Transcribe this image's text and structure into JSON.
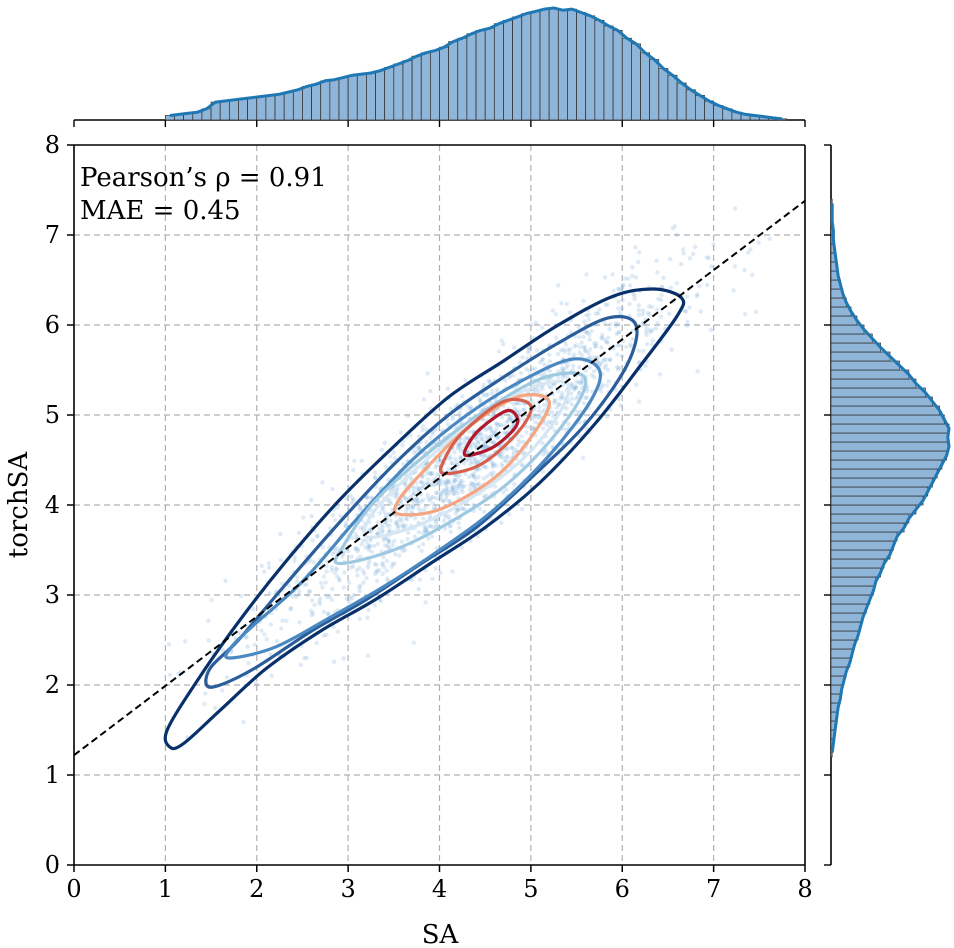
{
  "chart_data": {
    "type": "scatter",
    "xlabel": "SA",
    "ylabel": "torchSA",
    "xlim": [
      0,
      8
    ],
    "ylim": [
      0,
      8
    ],
    "x_ticks": [
      0,
      1,
      2,
      3,
      4,
      5,
      6,
      7,
      8
    ],
    "y_ticks": [
      0,
      1,
      2,
      3,
      4,
      5,
      6,
      7,
      8
    ],
    "grid": true,
    "annotations": [
      "Pearson’s ρ = 0.91",
      "MAE = 0.45"
    ],
    "fit_line": {
      "style": "dashed",
      "color": "#000000",
      "x": [
        0,
        8
      ],
      "y": [
        1.22,
        7.38
      ]
    },
    "scatter_color": "#6aa6d6",
    "scatter_summary": {
      "mean": [
        4.35,
        4.55
      ],
      "sd": [
        1.1,
        0.95
      ],
      "correlation": 0.91,
      "approx_points": 1800
    },
    "kde_contours": [
      {
        "level": 1,
        "color": "#08306b",
        "points": [
          [
            1.05,
            1.31
          ],
          [
            1.2,
            1.35
          ],
          [
            1.6,
            1.72
          ],
          [
            2.1,
            2.18
          ],
          [
            2.7,
            2.6
          ],
          [
            3.3,
            2.95
          ],
          [
            3.9,
            3.35
          ],
          [
            4.5,
            3.75
          ],
          [
            5.1,
            4.25
          ],
          [
            5.7,
            4.9
          ],
          [
            6.2,
            5.55
          ],
          [
            6.6,
            6.1
          ],
          [
            6.65,
            6.3
          ],
          [
            6.35,
            6.4
          ],
          [
            5.9,
            6.32
          ],
          [
            5.3,
            6.0
          ],
          [
            4.7,
            5.6
          ],
          [
            4.1,
            5.2
          ],
          [
            3.5,
            4.65
          ],
          [
            2.9,
            4.05
          ],
          [
            2.3,
            3.35
          ],
          [
            1.8,
            2.7
          ],
          [
            1.35,
            2.05
          ],
          [
            1.02,
            1.5
          ]
        ]
      },
      {
        "level": 2,
        "color": "#2a5d9a",
        "points": [
          [
            1.45,
            2.0
          ],
          [
            1.6,
            2.0
          ],
          [
            2.0,
            2.2
          ],
          [
            2.6,
            2.6
          ],
          [
            3.2,
            2.95
          ],
          [
            3.8,
            3.35
          ],
          [
            4.4,
            3.75
          ],
          [
            5.0,
            4.3
          ],
          [
            5.6,
            4.9
          ],
          [
            6.05,
            5.55
          ],
          [
            6.15,
            6.0
          ],
          [
            5.85,
            6.08
          ],
          [
            5.3,
            5.8
          ],
          [
            4.7,
            5.42
          ],
          [
            4.1,
            5.0
          ],
          [
            3.5,
            4.45
          ],
          [
            2.9,
            3.8
          ],
          [
            2.3,
            3.1
          ],
          [
            1.8,
            2.5
          ],
          [
            1.5,
            2.2
          ]
        ]
      },
      {
        "level": 3,
        "color": "#4a88c2",
        "points": [
          [
            1.7,
            2.3
          ],
          [
            2.2,
            2.42
          ],
          [
            2.8,
            2.75
          ],
          [
            3.4,
            3.1
          ],
          [
            4.0,
            3.5
          ],
          [
            4.6,
            3.95
          ],
          [
            5.2,
            4.55
          ],
          [
            5.65,
            5.15
          ],
          [
            5.75,
            5.5
          ],
          [
            5.45,
            5.62
          ],
          [
            4.9,
            5.38
          ],
          [
            4.3,
            5.0
          ],
          [
            3.7,
            4.5
          ],
          [
            3.1,
            3.85
          ],
          [
            2.5,
            3.15
          ],
          [
            1.95,
            2.65
          ],
          [
            1.72,
            2.42
          ]
        ]
      },
      {
        "level": 4,
        "color": "#9ecae1",
        "points": [
          [
            2.9,
            3.35
          ],
          [
            3.5,
            3.5
          ],
          [
            4.1,
            3.8
          ],
          [
            4.7,
            4.2
          ],
          [
            5.2,
            4.7
          ],
          [
            5.55,
            5.2
          ],
          [
            5.55,
            5.45
          ],
          [
            5.1,
            5.4
          ],
          [
            4.5,
            5.05
          ],
          [
            3.9,
            4.6
          ],
          [
            3.3,
            4.05
          ],
          [
            2.95,
            3.55
          ]
        ]
      },
      {
        "level": 5,
        "color": "#d6e6f2",
        "points": [
          [
            3.2,
            3.65
          ],
          [
            3.7,
            3.75
          ],
          [
            4.3,
            4.05
          ],
          [
            4.9,
            4.5
          ],
          [
            5.3,
            5.0
          ],
          [
            5.4,
            5.35
          ],
          [
            5.0,
            5.3
          ],
          [
            4.4,
            4.95
          ],
          [
            3.8,
            4.45
          ],
          [
            3.3,
            3.95
          ]
        ]
      },
      {
        "level": 6,
        "color": "#f4a582",
        "points": [
          [
            3.55,
            3.9
          ],
          [
            4.0,
            3.95
          ],
          [
            4.6,
            4.3
          ],
          [
            5.0,
            4.75
          ],
          [
            5.2,
            5.15
          ],
          [
            4.85,
            5.2
          ],
          [
            4.3,
            4.85
          ],
          [
            3.8,
            4.35
          ],
          [
            3.55,
            4.05
          ]
        ]
      },
      {
        "level": 7,
        "color": "#d6604d",
        "points": [
          [
            4.05,
            4.35
          ],
          [
            4.45,
            4.45
          ],
          [
            4.85,
            4.8
          ],
          [
            5.0,
            5.1
          ],
          [
            4.7,
            5.15
          ],
          [
            4.25,
            4.8
          ],
          [
            4.05,
            4.5
          ]
        ]
      },
      {
        "level": 8,
        "color": "#b2182b",
        "points": [
          [
            4.3,
            4.55
          ],
          [
            4.6,
            4.65
          ],
          [
            4.85,
            4.9
          ],
          [
            4.75,
            5.05
          ],
          [
            4.45,
            4.85
          ],
          [
            4.3,
            4.65
          ]
        ]
      }
    ],
    "marginal_x": {
      "orientation": "top",
      "bin_width": 0.1,
      "bin_start": 1.0,
      "bins": 68,
      "relative_heights": [
        0.04,
        0.05,
        0.06,
        0.07,
        0.1,
        0.16,
        0.17,
        0.18,
        0.19,
        0.2,
        0.21,
        0.22,
        0.23,
        0.25,
        0.27,
        0.3,
        0.32,
        0.35,
        0.36,
        0.38,
        0.4,
        0.41,
        0.42,
        0.44,
        0.47,
        0.5,
        0.53,
        0.57,
        0.6,
        0.62,
        0.65,
        0.7,
        0.73,
        0.77,
        0.8,
        0.82,
        0.86,
        0.89,
        0.92,
        0.95,
        0.97,
        0.99,
        1.0,
        0.98,
        0.99,
        0.96,
        0.93,
        0.89,
        0.84,
        0.8,
        0.73,
        0.68,
        0.6,
        0.54,
        0.46,
        0.4,
        0.33,
        0.27,
        0.22,
        0.17,
        0.13,
        0.1,
        0.07,
        0.05,
        0.04,
        0.03,
        0.02,
        0.01
      ],
      "kde_color": "#1f77b4",
      "bar_color": "#8fb5d8"
    },
    "marginal_y": {
      "orientation": "right",
      "bin_width": 0.1,
      "bin_start": 1.2,
      "bins": 62,
      "relative_heights": [
        0.01,
        0.02,
        0.03,
        0.04,
        0.05,
        0.06,
        0.08,
        0.09,
        0.11,
        0.13,
        0.16,
        0.18,
        0.2,
        0.23,
        0.25,
        0.27,
        0.3,
        0.33,
        0.36,
        0.38,
        0.42,
        0.45,
        0.5,
        0.53,
        0.56,
        0.62,
        0.66,
        0.72,
        0.78,
        0.82,
        0.86,
        0.9,
        0.94,
        0.98,
        1.0,
        0.99,
        1.0,
        0.96,
        0.92,
        0.86,
        0.8,
        0.72,
        0.66,
        0.58,
        0.5,
        0.42,
        0.35,
        0.28,
        0.22,
        0.17,
        0.13,
        0.1,
        0.08,
        0.06,
        0.05,
        0.04,
        0.03,
        0.02,
        0.02,
        0.01,
        0.01,
        0.01
      ],
      "kde_color": "#1f77b4",
      "bar_color": "#8fb5d8"
    }
  },
  "colors": {
    "grid": "#b0b0b0",
    "axis": "#000000"
  }
}
